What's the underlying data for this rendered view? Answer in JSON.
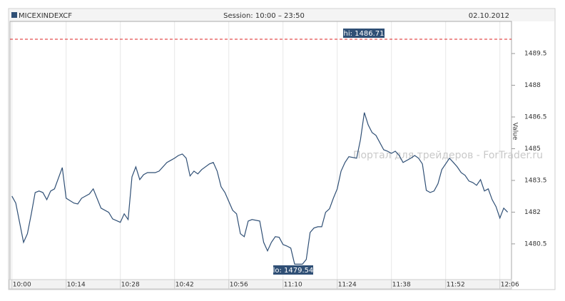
{
  "chart_data": {
    "type": "line",
    "session": "Session: 10:00 – 23:50",
    "date": "02.10.2012",
    "y_label": "Value",
    "watermark": "Портал для трейдеров - ForTrader.ru",
    "hi_label": "hi: 1486.71",
    "lo_label": "lo: 1479.54",
    "x": [
      600,
      601,
      603,
      604,
      605,
      606,
      607,
      608,
      609,
      610,
      611,
      613,
      614,
      616,
      617,
      618,
      620,
      621,
      623,
      625,
      626,
      628,
      629,
      630,
      631,
      632,
      633,
      634,
      635,
      637,
      638,
      640,
      641,
      642,
      643,
      644,
      645,
      646,
      647,
      648,
      649,
      651,
      652,
      653,
      654,
      655,
      657,
      658,
      659,
      660,
      661,
      662,
      664,
      665,
      666,
      667,
      668,
      669,
      670,
      671,
      672,
      673,
      675,
      676,
      677,
      678,
      679,
      680,
      681,
      682,
      683,
      684,
      685,
      686,
      687,
      689,
      690,
      691,
      692,
      693,
      694,
      696,
      697,
      698,
      699,
      700,
      701,
      703,
      704,
      705,
      706,
      707,
      708,
      709,
      710,
      711,
      713,
      714,
      715,
      716,
      717,
      718,
      719,
      720,
      721,
      722,
      723,
      724,
      725,
      726,
      727,
      728
    ],
    "series": [
      {
        "name": "MICEXINDEXCF",
        "color": "#2f4f75",
        "values": [
          1482.76,
          1482.43,
          1480.57,
          1480.98,
          1481.92,
          1482.93,
          1483.0,
          1482.93,
          1482.59,
          1483.0,
          1483.1,
          1484.11,
          1482.66,
          1482.43,
          1482.39,
          1482.66,
          1482.86,
          1483.1,
          1482.19,
          1481.99,
          1481.68,
          1481.52,
          1481.92,
          1481.65,
          1483.67,
          1484.14,
          1483.54,
          1483.77,
          1483.87,
          1483.87,
          1483.94,
          1484.35,
          1484.45,
          1484.55,
          1484.68,
          1484.75,
          1484.55,
          1483.71,
          1483.94,
          1483.81,
          1484.01,
          1484.28,
          1484.35,
          1483.94,
          1483.2,
          1482.93,
          1482.09,
          1481.92,
          1480.98,
          1480.84,
          1481.58,
          1481.65,
          1481.58,
          1480.57,
          1480.17,
          1480.57,
          1480.84,
          1480.81,
          1480.47,
          1480.4,
          1480.3,
          1479.54,
          1479.54,
          1479.76,
          1481.04,
          1481.25,
          1481.31,
          1481.31,
          1481.99,
          1482.16,
          1482.66,
          1483.1,
          1483.94,
          1484.35,
          1484.62,
          1484.55,
          1485.43,
          1486.71,
          1486.13,
          1485.76,
          1485.63,
          1484.95,
          1484.88,
          1484.78,
          1484.88,
          1484.68,
          1484.35,
          1484.55,
          1484.68,
          1484.55,
          1484.28,
          1483.03,
          1482.93,
          1483.0,
          1483.34,
          1484.01,
          1484.55,
          1484.35,
          1484.14,
          1483.87,
          1483.74,
          1483.47,
          1483.4,
          1483.27,
          1483.54,
          1483.0,
          1483.1,
          1482.59,
          1482.26,
          1481.72,
          1482.19,
          1482.0
        ]
      }
    ],
    "xlim": [
      599.5,
      729
    ],
    "xticks": [
      {
        "value": 600,
        "label": "10:00"
      },
      {
        "value": 614,
        "label": "10:14"
      },
      {
        "value": 628,
        "label": "10:28"
      },
      {
        "value": 642,
        "label": "10:42"
      },
      {
        "value": 656,
        "label": "10:56"
      },
      {
        "value": 670,
        "label": "11:10"
      },
      {
        "value": 684,
        "label": "11:24"
      },
      {
        "value": 698,
        "label": "11:38"
      },
      {
        "value": 712,
        "label": "11:52"
      },
      {
        "value": 726,
        "label": "12:06"
      }
    ],
    "ylim": [
      1478.81,
      1491.02
    ],
    "yticks": [
      1480.5,
      1482,
      1483.5,
      1485,
      1486.5,
      1488,
      1489.5
    ],
    "x_grid": true
  }
}
